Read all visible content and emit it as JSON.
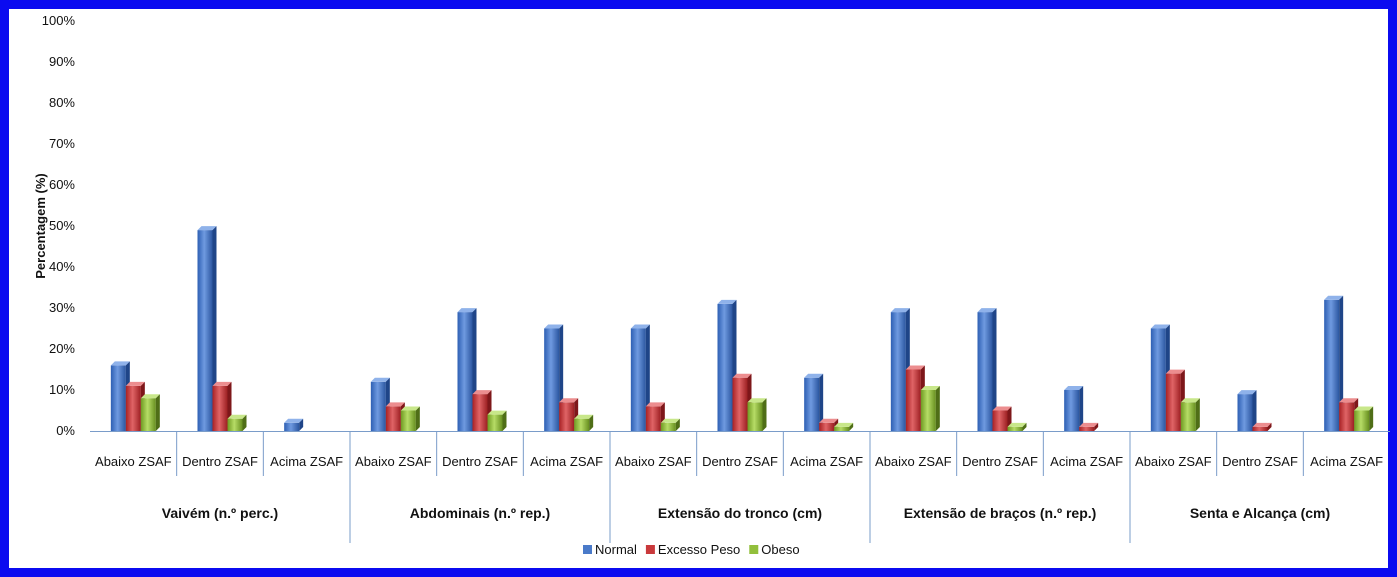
{
  "chart_data": {
    "type": "bar",
    "ylabel": "Percentagem (%)",
    "ylim": [
      0,
      100
    ],
    "yticks": [
      "0%",
      "10%",
      "20%",
      "30%",
      "40%",
      "50%",
      "60%",
      "70%",
      "80%",
      "90%",
      "100%"
    ],
    "groups": [
      {
        "label": "Vaivém (n.º perc.)",
        "categories": [
          "Abaixo ZSAF",
          "Dentro ZSAF",
          "Acima ZSAF"
        ]
      },
      {
        "label": "Abdominais (n.º rep.)",
        "categories": [
          "Abaixo ZSAF",
          "Dentro ZSAF",
          "Acima ZSAF"
        ]
      },
      {
        "label": "Extensão do tronco (cm)",
        "categories": [
          "Abaixo ZSAF",
          "Dentro ZSAF",
          "Acima ZSAF"
        ]
      },
      {
        "label": "Extensão de braços (n.º rep.)",
        "categories": [
          "Abaixo ZSAF",
          "Dentro ZSAF",
          "Acima ZSAF"
        ]
      },
      {
        "label": "Senta e Alcança (cm)",
        "categories": [
          "Abaixo ZSAF",
          "Dentro ZSAF",
          "Acima ZSAF"
        ]
      }
    ],
    "series": [
      {
        "name": "Normal",
        "color": "#4a7ac9",
        "values": [
          16,
          49,
          2,
          12,
          29,
          25,
          25,
          31,
          13,
          29,
          29,
          10,
          25,
          9,
          32
        ]
      },
      {
        "name": "Excesso Peso",
        "color": "#c9393b",
        "values": [
          11,
          11,
          0,
          6,
          9,
          7,
          6,
          13,
          2,
          15,
          5,
          1,
          14,
          1,
          7
        ]
      },
      {
        "name": "Obeso",
        "color": "#92bf3c",
        "values": [
          8,
          3,
          0,
          5,
          4,
          3,
          2,
          7,
          1,
          10,
          1,
          0,
          7,
          0,
          5
        ]
      }
    ],
    "legend_position": "bottom",
    "grid": false
  }
}
